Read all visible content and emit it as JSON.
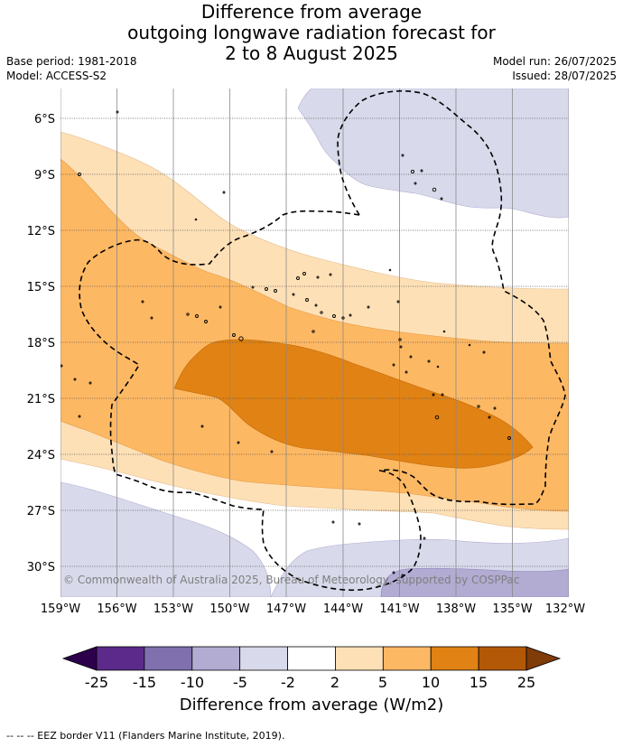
{
  "title": {
    "line1": "Difference from average",
    "line2": "outgoing longwave radiation forecast for",
    "line3": "2 to 8 August 2025"
  },
  "meta": {
    "base_period": "Base period: 1981-2018",
    "model": "Model: ACCESS-S2",
    "model_run": "Model run: 26/07/2025",
    "issued": "Issued: 28/07/2025"
  },
  "map": {
    "lat_ticks": [
      "6°S",
      "9°S",
      "12°S",
      "15°S",
      "18°S",
      "21°S",
      "24°S",
      "27°S",
      "30°S"
    ],
    "lon_ticks": [
      "159°W",
      "156°W",
      "153°W",
      "150°W",
      "147°W",
      "144°W",
      "141°W",
      "138°W",
      "135°W",
      "132°W"
    ],
    "copyright": "© Commonwealth of Australia 2025, Bureau of Meteorology, supported by COSPPac"
  },
  "colorbar": {
    "ticks": [
      "-25",
      "-15",
      "-10",
      "-5",
      "-2",
      "2",
      "5",
      "10",
      "15",
      "25"
    ],
    "colors": [
      "#5b2a8a",
      "#8070ae",
      "#b2abd2",
      "#d8daeb",
      "#ffffff",
      "#fee0b6",
      "#fdb863",
      "#e08214",
      "#b35806"
    ],
    "under_color": "#2d004b",
    "over_color": "#7f3b08",
    "label": "Difference from average (W/m2)"
  },
  "footnote": "-- -- -- EEZ border V11 (Flanders Marine Institute, 2019)."
}
